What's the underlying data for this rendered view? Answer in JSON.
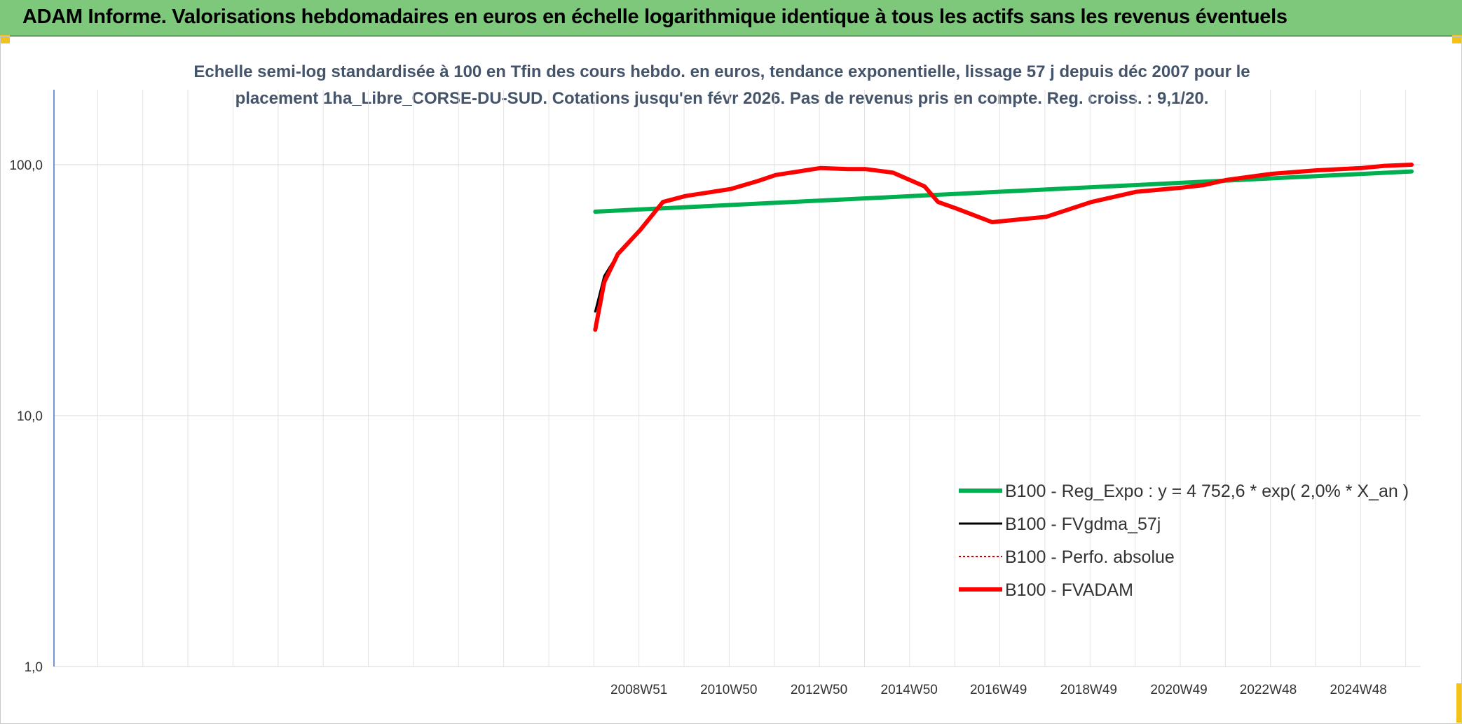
{
  "header": {
    "title": "ADAM Informe. Valorisations hebdomadaires en euros en échelle logarithmique identique à tous les actifs sans les revenus éventuels"
  },
  "chart_data": {
    "type": "line",
    "title": "Echelle semi-log standardisée à 100 en Tfin des cours hebdo. en euros, tendance exponentielle, lissage 57 j depuis déc 2007 pour le placement 1ha_Libre_CORSE-DU-SUD. Cotations jusqu'en févr 2026. Pas de revenus pris en compte. Reg. croiss. : 9,1/20.",
    "y_scale": "log",
    "ylim": [
      1,
      100
    ],
    "y_ticks": [
      "1,0",
      "10,0",
      "100,0"
    ],
    "y_tick_values": [
      1,
      10,
      100
    ],
    "x_ticks": [
      "2008W51",
      "2010W50",
      "2012W50",
      "2014W50",
      "2016W49",
      "2018W49",
      "2020W49",
      "2022W48",
      "2024W48"
    ],
    "x_tick_values": [
      2008.97,
      2010.96,
      2012.96,
      2014.96,
      2016.94,
      2018.94,
      2020.94,
      2022.92,
      2024.92
    ],
    "xlim": [
      1996.0,
      2026.3
    ],
    "grid": true,
    "legend_position": "bottom-right",
    "series": [
      {
        "name": "B100 - Reg_Expo : y = 4 752,6 * exp( 2,0% *  X_an )",
        "color": "#00b050",
        "style": "solid-thick",
        "x": [
          2008.0,
          2026.1
        ],
        "y": [
          65,
          94
        ]
      },
      {
        "name": "B100 - FVgdma_57j",
        "color": "#000000",
        "style": "solid",
        "x": [
          2008.0,
          2008.2,
          2008.5,
          2009.0,
          2009.5,
          2010.0,
          2011.0,
          2011.6,
          2012.0,
          2013.0,
          2013.6,
          2014.0,
          2014.6,
          2015.3,
          2015.6,
          2016.0,
          2016.8,
          2017.2,
          2018.0,
          2019.0,
          2020.0,
          2021.0,
          2021.5,
          2022.0,
          2023.0,
          2024.0,
          2025.0,
          2025.5,
          2026.1
        ],
        "y": [
          26,
          36,
          44,
          55,
          71,
          75,
          80,
          86,
          91,
          97,
          96,
          96,
          93,
          82,
          71,
          67,
          59,
          60,
          62,
          71,
          78,
          81,
          83,
          87,
          92,
          95,
          97,
          99,
          100
        ]
      },
      {
        "name": "B100 - Perfo. absolue",
        "color": "#c00000",
        "style": "dotted",
        "x": [],
        "y": []
      },
      {
        "name": "B100 - FVADAM",
        "color": "#ff0000",
        "style": "solid-thick",
        "x": [
          2008.0,
          2008.2,
          2008.5,
          2009.0,
          2009.5,
          2010.0,
          2011.0,
          2011.6,
          2012.0,
          2013.0,
          2013.6,
          2014.0,
          2014.6,
          2015.3,
          2015.6,
          2016.0,
          2016.8,
          2017.2,
          2018.0,
          2019.0,
          2020.0,
          2021.0,
          2021.5,
          2022.0,
          2023.0,
          2024.0,
          2025.0,
          2025.5,
          2026.1
        ],
        "y": [
          22,
          34,
          44,
          55,
          71,
          75,
          80,
          86,
          91,
          97,
          96,
          96,
          93,
          82,
          71,
          67,
          59,
          60,
          62,
          71,
          78,
          81,
          83,
          87,
          92,
          95,
          97,
          99,
          100
        ]
      }
    ]
  }
}
